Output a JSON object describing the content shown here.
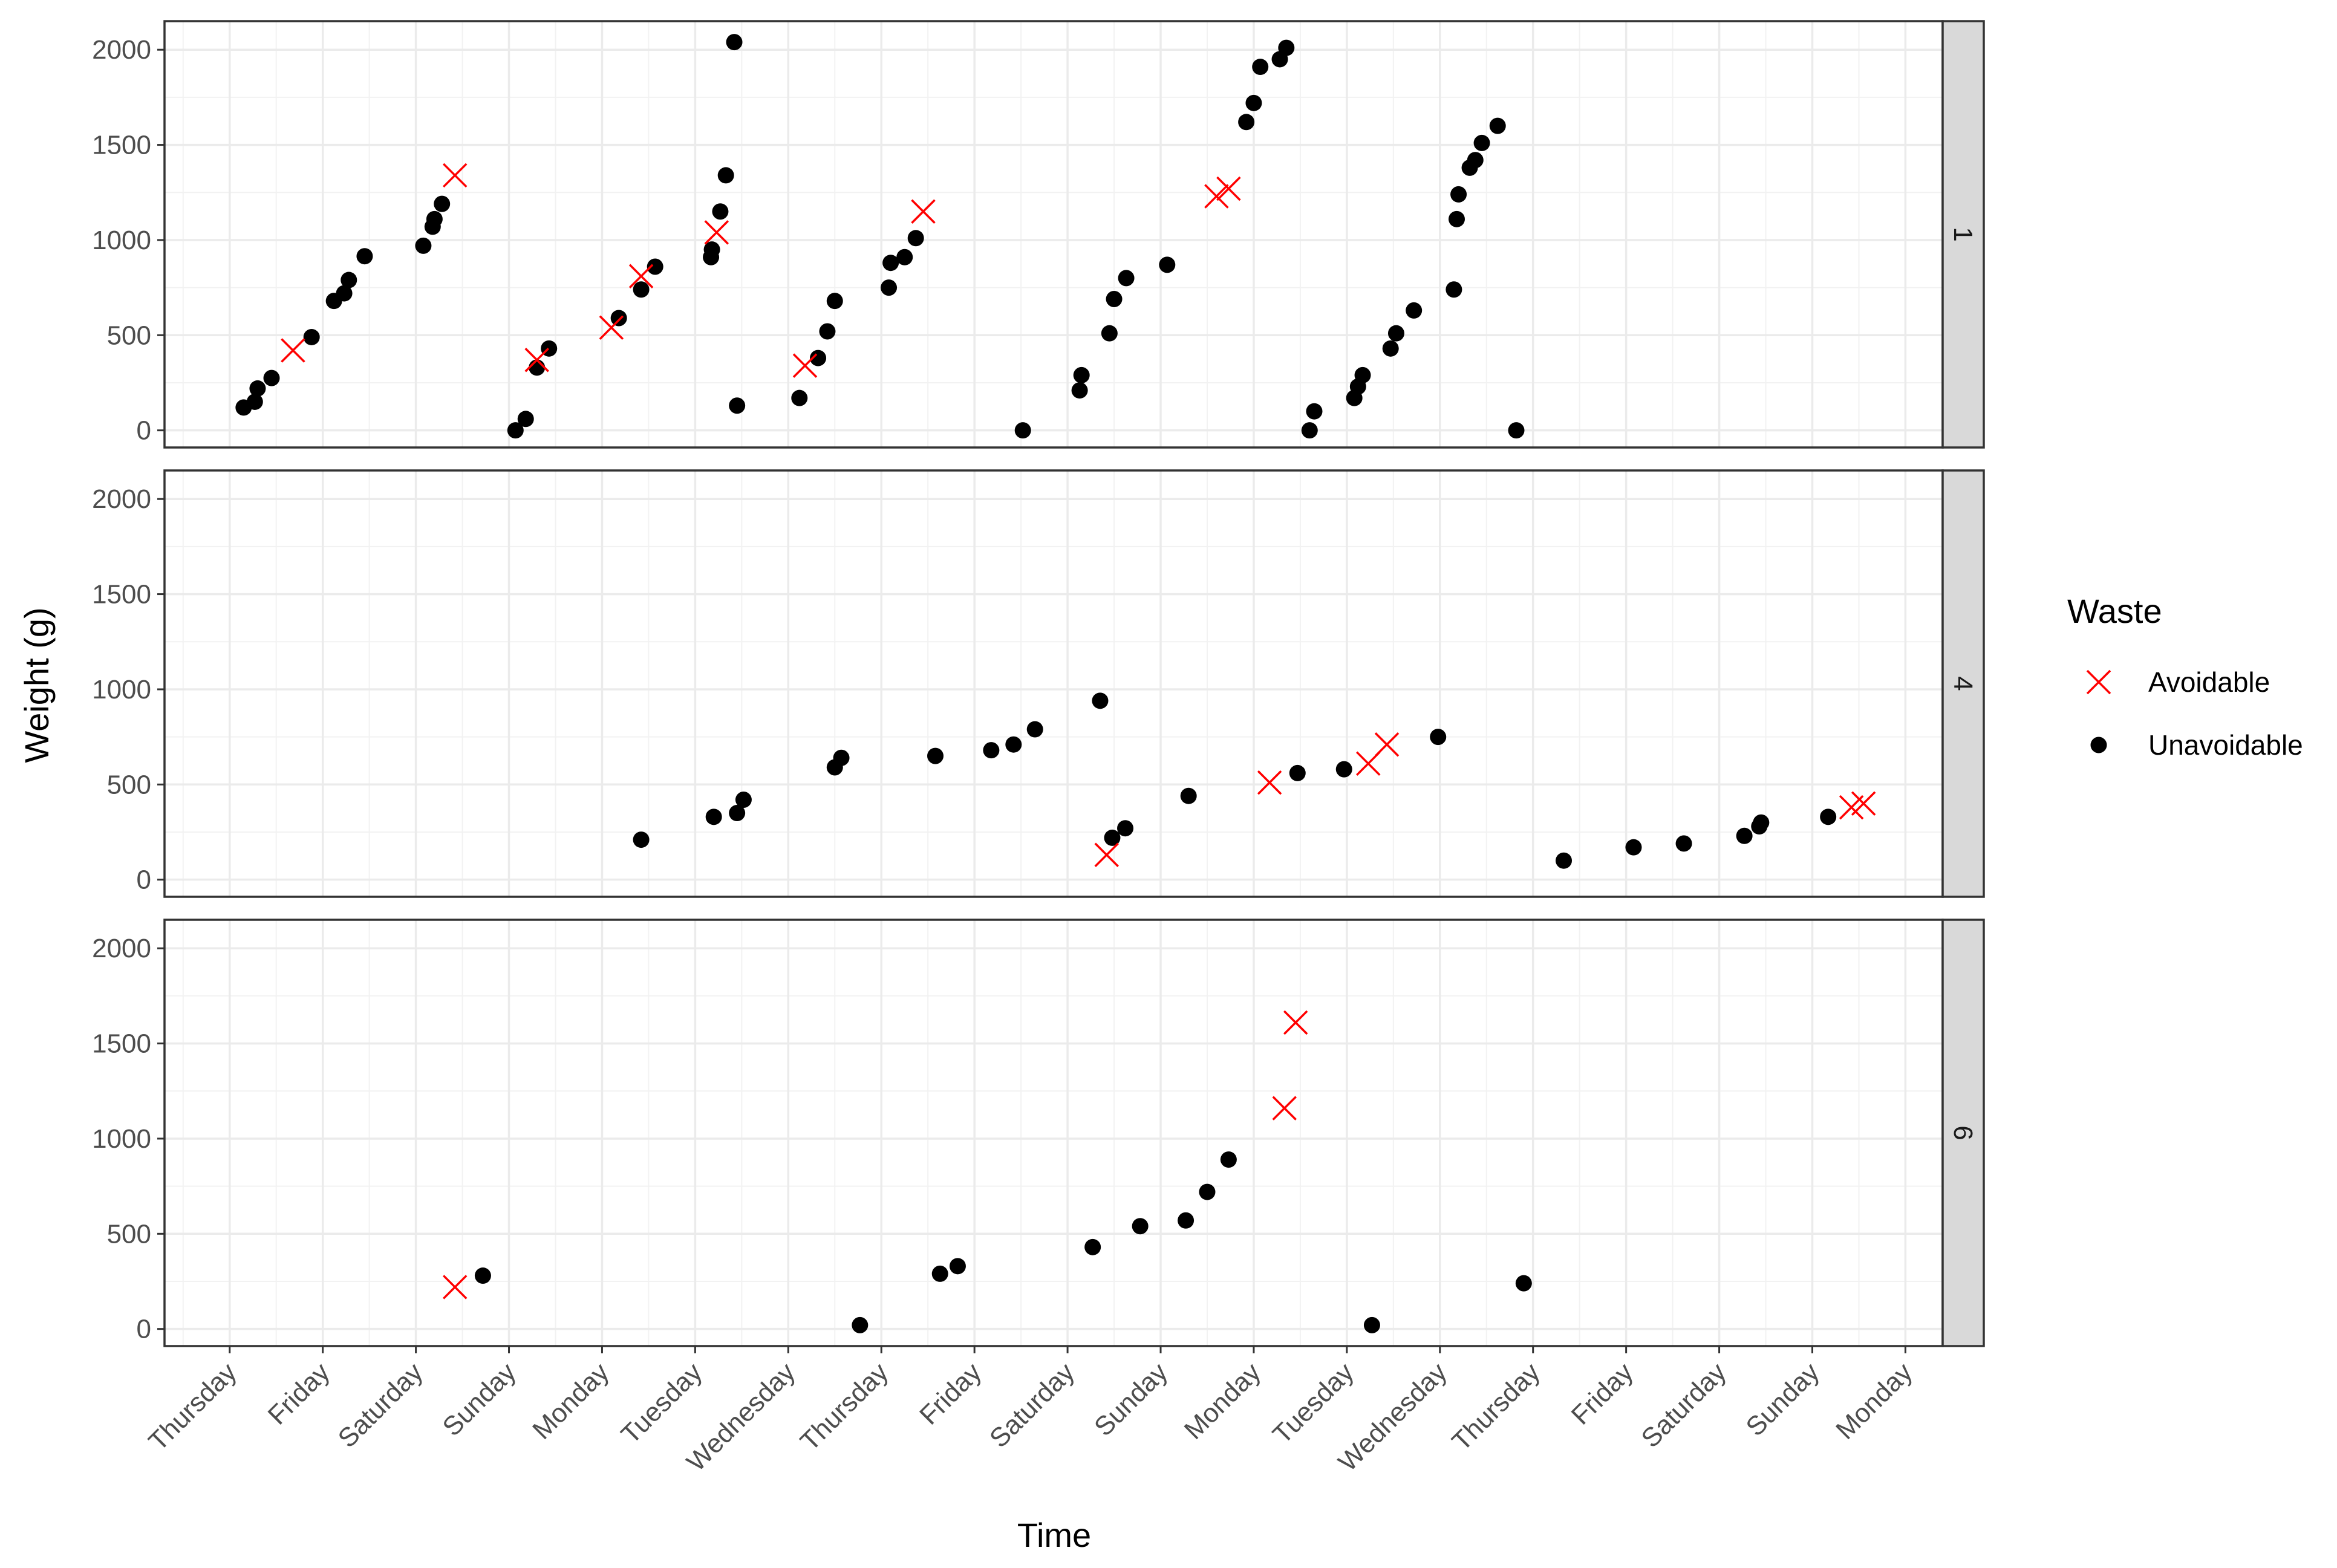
{
  "chart_data": {
    "type": "scatter",
    "xlabel": "Time",
    "ylabel": "Weight (g)",
    "x_tick_labels": [
      "Thursday",
      "Friday",
      "Saturday",
      "Sunday",
      "Monday",
      "Tuesday",
      "Wednesday",
      "Thursday",
      "Friday",
      "Saturday",
      "Sunday",
      "Monday",
      "Tuesday",
      "Wednesday",
      "Thursday",
      "Friday",
      "Saturday",
      "Sunday",
      "Monday"
    ],
    "x_range": [
      -0.7,
      18.4
    ],
    "y_ticks": [
      0,
      500,
      1000,
      1500,
      2000
    ],
    "y_tick_labels": [
      "0",
      "500",
      "1000",
      "1500",
      "2000"
    ],
    "ylim": [
      -90,
      2150
    ],
    "grid": true,
    "legend": {
      "title": "Waste",
      "position": "right",
      "entries": [
        {
          "label": "Avoidable",
          "marker": "x",
          "color": "#ff0000"
        },
        {
          "label": "Unavoidable",
          "marker": "circle",
          "color": "#000000"
        }
      ]
    },
    "facets": [
      {
        "strip": "1",
        "avoidable": [
          [
            0.68,
            420
          ],
          [
            2.42,
            1340
          ],
          [
            3.3,
            370
          ],
          [
            4.1,
            540
          ],
          [
            4.42,
            810
          ],
          [
            5.23,
            1040
          ],
          [
            6.18,
            340
          ],
          [
            7.45,
            1150
          ],
          [
            10.6,
            1230
          ],
          [
            10.73,
            1270
          ]
        ],
        "unavoidable": [
          [
            0.15,
            120
          ],
          [
            0.27,
            150
          ],
          [
            0.3,
            220
          ],
          [
            0.45,
            275
          ],
          [
            0.88,
            490
          ],
          [
            1.12,
            680
          ],
          [
            1.23,
            720
          ],
          [
            1.28,
            790
          ],
          [
            1.45,
            915
          ],
          [
            2.08,
            970
          ],
          [
            2.18,
            1070
          ],
          [
            2.2,
            1110
          ],
          [
            2.28,
            1190
          ],
          [
            3.07,
            0
          ],
          [
            3.18,
            60
          ],
          [
            3.3,
            330
          ],
          [
            3.43,
            430
          ],
          [
            4.18,
            590
          ],
          [
            4.42,
            740
          ],
          [
            4.57,
            860
          ],
          [
            5.17,
            910
          ],
          [
            5.18,
            950
          ],
          [
            5.27,
            1150
          ],
          [
            5.33,
            1340
          ],
          [
            5.42,
            2040
          ],
          [
            5.45,
            130
          ],
          [
            6.12,
            170
          ],
          [
            6.32,
            380
          ],
          [
            6.42,
            520
          ],
          [
            6.5,
            680
          ],
          [
            7.08,
            750
          ],
          [
            7.1,
            880
          ],
          [
            7.25,
            910
          ],
          [
            7.37,
            1010
          ],
          [
            8.52,
            0
          ],
          [
            9.13,
            210
          ],
          [
            9.15,
            290
          ],
          [
            9.45,
            510
          ],
          [
            9.5,
            690
          ],
          [
            9.63,
            800
          ],
          [
            10.07,
            870
          ],
          [
            10.92,
            1620
          ],
          [
            11.0,
            1720
          ],
          [
            11.07,
            1910
          ],
          [
            11.28,
            1950
          ],
          [
            11.35,
            2010
          ],
          [
            11.6,
            0
          ],
          [
            11.65,
            100
          ],
          [
            12.08,
            170
          ],
          [
            12.12,
            230
          ],
          [
            12.17,
            290
          ],
          [
            12.47,
            430
          ],
          [
            12.53,
            510
          ],
          [
            12.72,
            630
          ],
          [
            13.15,
            740
          ],
          [
            13.18,
            1110
          ],
          [
            13.2,
            1240
          ],
          [
            13.32,
            1380
          ],
          [
            13.38,
            1420
          ],
          [
            13.45,
            1510
          ],
          [
            13.62,
            1600
          ],
          [
            13.82,
            0
          ]
        ]
      },
      {
        "strip": "4",
        "avoidable": [
          [
            9.42,
            130
          ],
          [
            11.17,
            510
          ],
          [
            12.23,
            610
          ],
          [
            12.43,
            710
          ],
          [
            17.42,
            380
          ],
          [
            17.55,
            400
          ]
        ],
        "unavoidable": [
          [
            4.42,
            210
          ],
          [
            5.2,
            330
          ],
          [
            5.45,
            350
          ],
          [
            5.52,
            420
          ],
          [
            6.5,
            590
          ],
          [
            6.57,
            640
          ],
          [
            7.58,
            650
          ],
          [
            8.18,
            680
          ],
          [
            8.42,
            710
          ],
          [
            8.65,
            790
          ],
          [
            9.35,
            940
          ],
          [
            9.48,
            220
          ],
          [
            9.62,
            270
          ],
          [
            10.3,
            440
          ],
          [
            11.47,
            560
          ],
          [
            11.97,
            580
          ],
          [
            12.98,
            750
          ],
          [
            14.33,
            100
          ],
          [
            15.08,
            170
          ],
          [
            15.62,
            190
          ],
          [
            16.27,
            230
          ],
          [
            16.43,
            280
          ],
          [
            16.45,
            300
          ],
          [
            17.17,
            330
          ]
        ]
      },
      {
        "strip": "6",
        "avoidable": [
          [
            2.42,
            220
          ],
          [
            11.33,
            1160
          ],
          [
            11.45,
            1610
          ]
        ],
        "unavoidable": [
          [
            2.72,
            280
          ],
          [
            6.77,
            20
          ],
          [
            7.63,
            290
          ],
          [
            7.82,
            330
          ],
          [
            9.27,
            430
          ],
          [
            9.78,
            540
          ],
          [
            10.27,
            570
          ],
          [
            10.5,
            720
          ],
          [
            10.73,
            890
          ],
          [
            12.27,
            20
          ],
          [
            13.9,
            240
          ]
        ]
      }
    ]
  }
}
